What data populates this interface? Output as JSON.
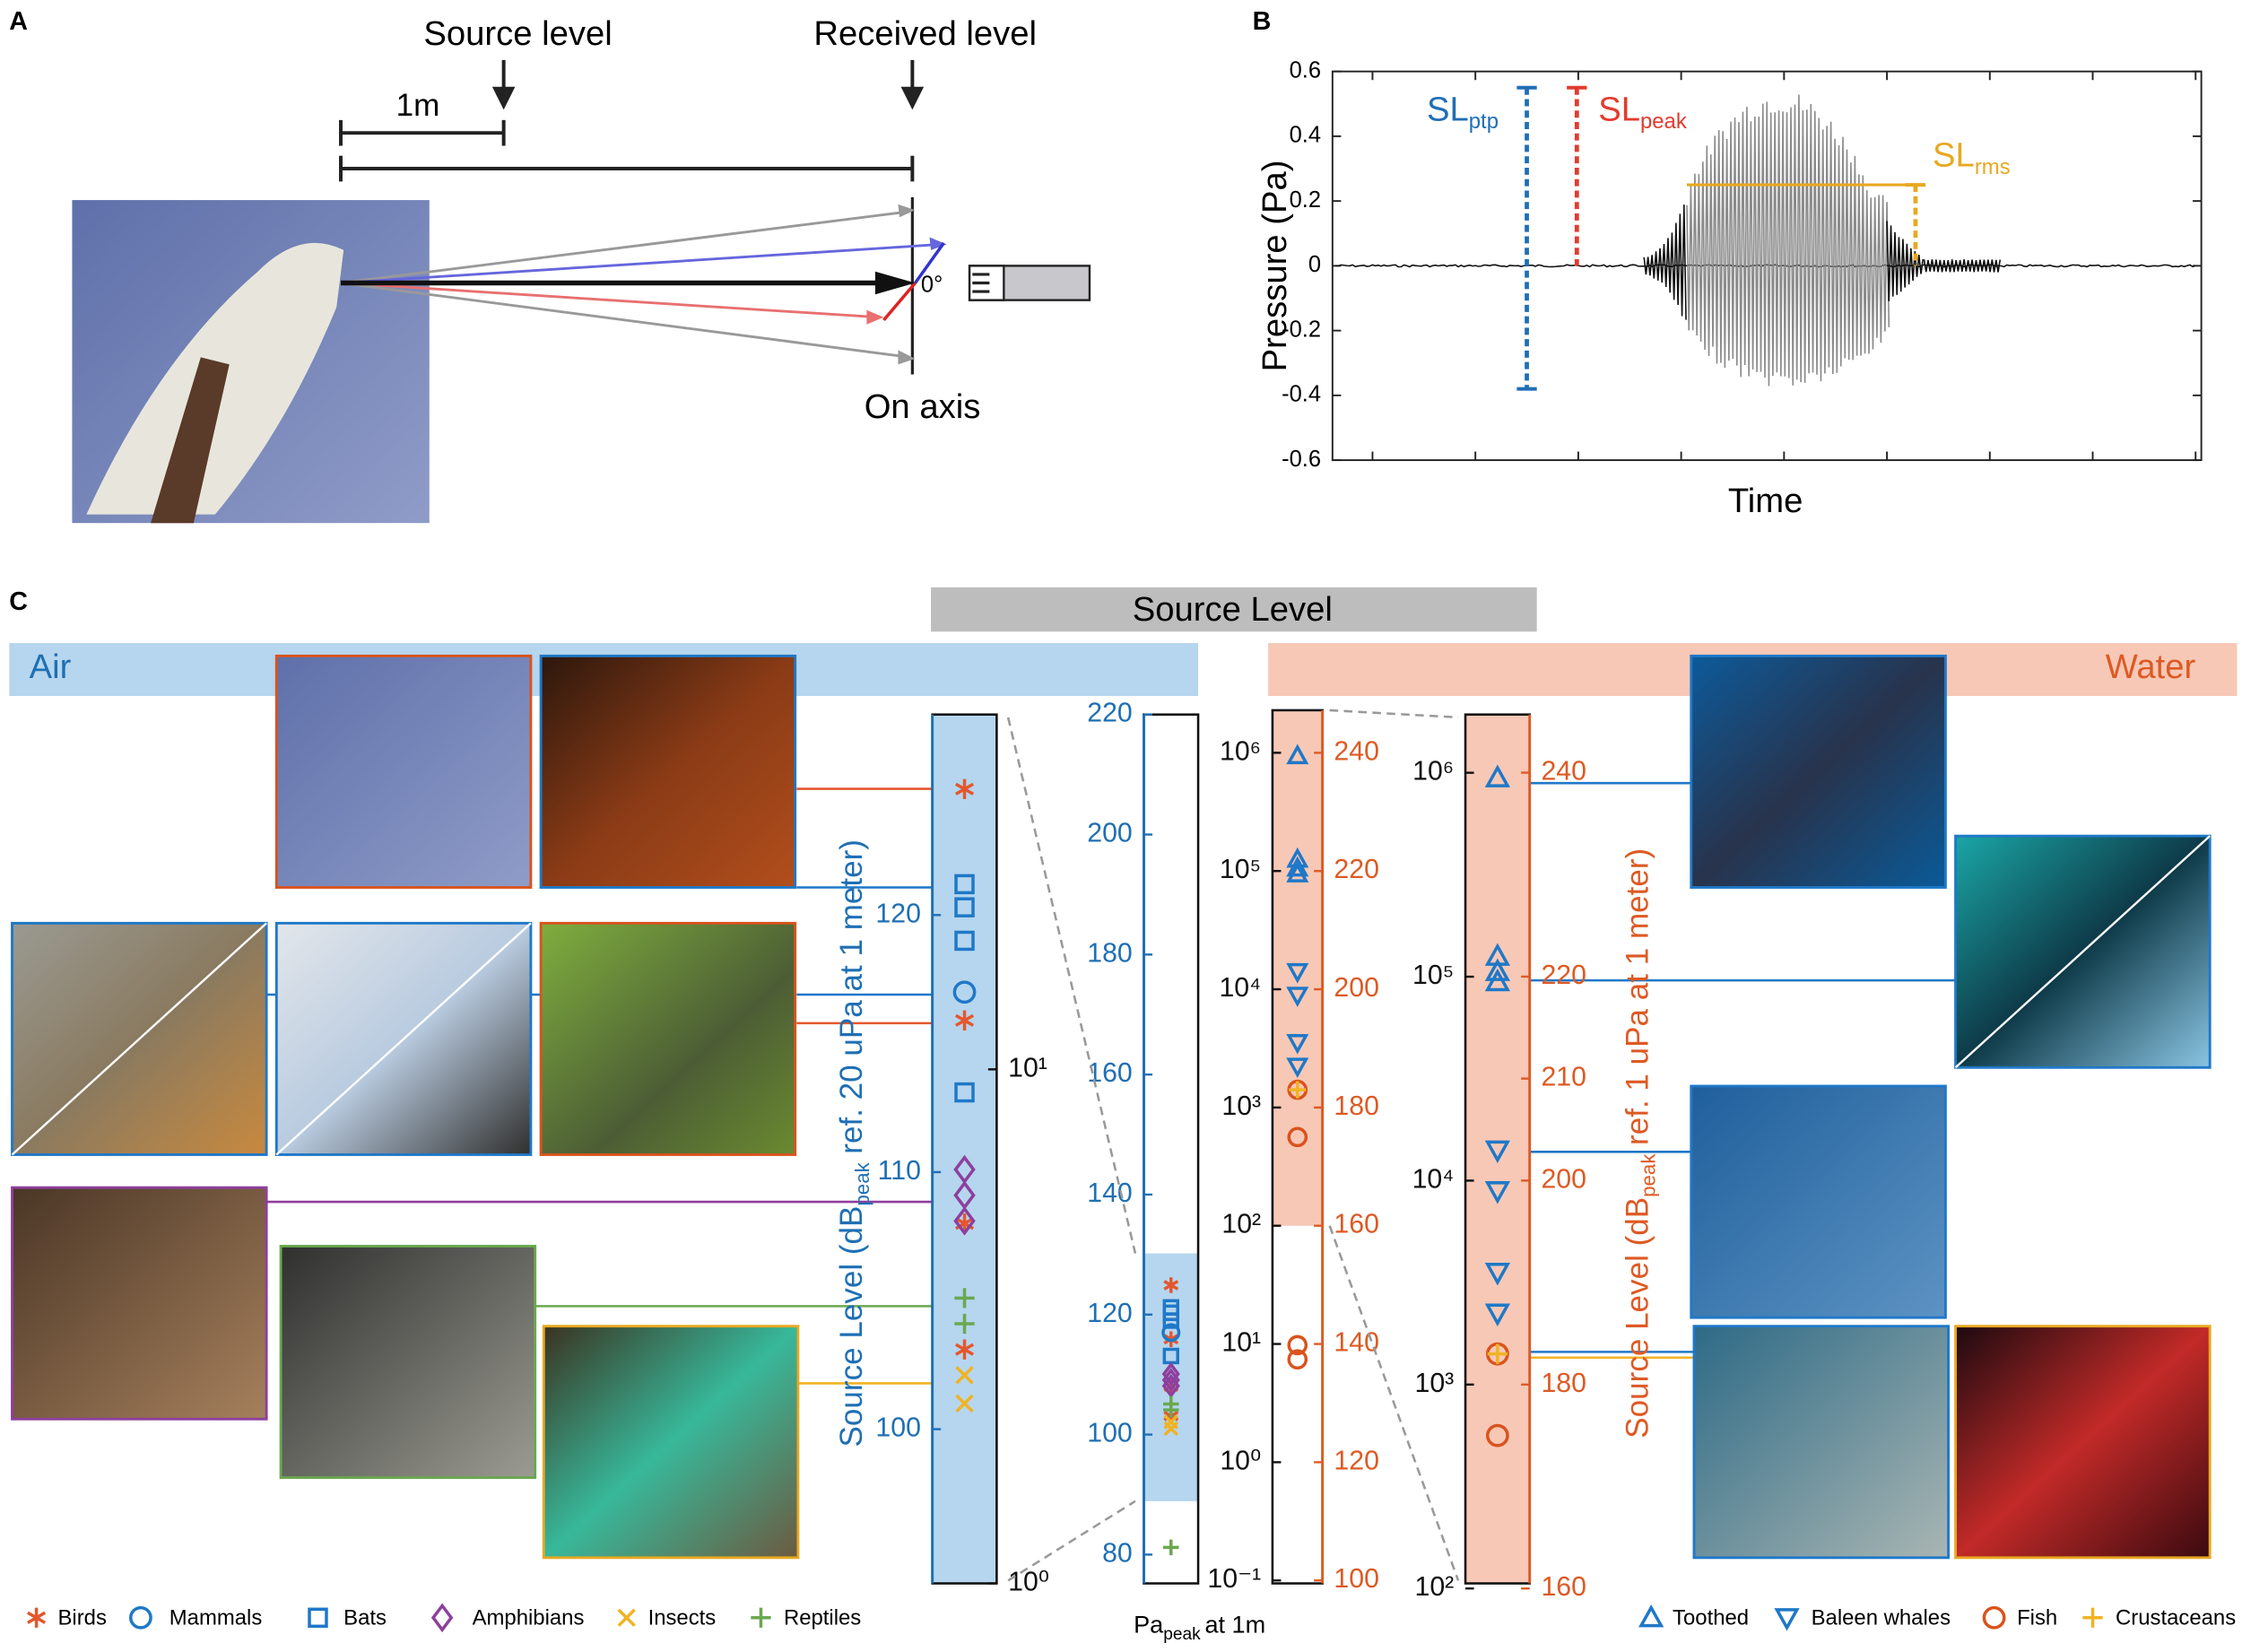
{
  "panel_a": {
    "label": "A",
    "source_level": "Source level",
    "received_level": "Received level",
    "distance": "1m",
    "angle": "0°",
    "on_axis": "On axis"
  },
  "panel_b": {
    "label": "B",
    "y_label": "Pressure (Pa)",
    "x_label": "Time",
    "ylim": [
      -0.6,
      0.6
    ],
    "yticks": [
      0.6,
      0.4,
      0.2,
      0,
      -0.2,
      -0.4,
      -0.6
    ],
    "annotations": [
      {
        "text": "SL",
        "sub": "ptp",
        "color": "#1f6fb4",
        "ymin": -0.38,
        "ymax": 0.55
      },
      {
        "text": "SL",
        "sub": "peak",
        "color": "#e23b2e",
        "ymin": 0,
        "ymax": 0.55
      },
      {
        "text": "SL",
        "sub": "rms",
        "color": "#e8a820",
        "ymin": 0,
        "ymax": 0.25
      }
    ]
  },
  "panel_c": {
    "label": "C",
    "title": "Source Level",
    "air": {
      "label": "Air",
      "color": "#1f6fb4",
      "band_color": "#b5d6ee",
      "y_label": {
        "pre": "Source Level (dB",
        "sub": "peak",
        "post": "ref. 20 uPa at 1 meter)"
      },
      "axes": [
        {
          "ylim": [
            94,
            127.8
          ],
          "yticks": [
            100,
            110,
            120
          ],
          "yside": "left",
          "color": "#1f6fb4",
          "shade": true,
          "y2lim": [
            1,
            49
          ],
          "y2log": true,
          "y2ticks": [
            {
              "value": 1,
              "label": "10⁰"
            },
            {
              "value": 10,
              "label": "10¹"
            }
          ]
        },
        {
          "ylim": [
            75.2,
            220
          ],
          "yticks": [
            80,
            100,
            120,
            140,
            160,
            180,
            200,
            220
          ],
          "yside": "left",
          "color": "#1f6fb4",
          "shade": [
            88.9,
            130.2
          ],
          "x_label": {
            "pre": "Pa",
            "sub": "peak",
            "post": "at 1m"
          }
        }
      ],
      "series": [
        {
          "name": "Birds",
          "marker": "asterisk",
          "color": "#e4572e",
          "values": [
            124.9,
            115.9,
            108.0,
            103.1
          ]
        },
        {
          "name": "Mammals",
          "marker": "circle",
          "color": "#1f78c8",
          "values": [
            117.0
          ]
        },
        {
          "name": "Bats",
          "marker": "square",
          "color": "#1f78c8",
          "values": [
            121.2,
            120.3,
            119.0,
            113.1
          ]
        },
        {
          "name": "Amphibians",
          "marker": "diamond",
          "color": "#8e3f9e",
          "values": [
            110.1,
            109.1,
            108.1
          ]
        },
        {
          "name": "Insects",
          "marker": "x",
          "color": "#f0b323",
          "values": [
            102.1,
            101.0
          ]
        },
        {
          "name": "Reptiles",
          "marker": "plus",
          "color": "#6aa84f",
          "values": [
            105.1,
            104.1,
            81.2
          ]
        }
      ]
    },
    "water": {
      "label": "Water",
      "color": "#dd5a24",
      "band_color": "#f7c8b6",
      "y_label": {
        "pre": "Source Level (dB",
        "sub": "peak",
        "post": "ref. 1 uPa at 1 meter)"
      },
      "axes": [
        {
          "ylim": [
            99.5,
            247.2
          ],
          "yticks": [
            100,
            120,
            140,
            160,
            180,
            200,
            220,
            240
          ],
          "yside": "right",
          "color": "#dd5a24",
          "shade": [
            160,
            247.2
          ],
          "y2lim": [
            0.0944,
            2290000
          ],
          "y2log": true,
          "y2ticks": [
            {
              "value": 0.1,
              "label": "10⁻¹"
            },
            {
              "value": 1,
              "label": "10⁰"
            },
            {
              "value": 10,
              "label": "10¹"
            },
            {
              "value": 100,
              "label": "10²"
            },
            {
              "value": 1000,
              "label": "10³"
            },
            {
              "value": 10000,
              "label": "10⁴"
            },
            {
              "value": 100000,
              "label": "10⁵"
            },
            {
              "value": 1000000,
              "label": "10⁶"
            }
          ]
        },
        {
          "ylim": [
            160.5,
            245.7
          ],
          "yticks": [
            160,
            180,
            200,
            210,
            220,
            240
          ],
          "yside": "right",
          "color": "#dd5a24",
          "shade": true,
          "y2lim": [
            105.9,
            1930000
          ],
          "y2log": true,
          "y2ticks": [
            {
              "value": 100,
              "label": "10²"
            },
            {
              "value": 1000,
              "label": "10³"
            },
            {
              "value": 10000,
              "label": "10⁴"
            },
            {
              "value": 100000,
              "label": "10⁵"
            },
            {
              "value": 1000000,
              "label": "10⁶"
            }
          ]
        }
      ],
      "series": [
        {
          "name": "Toothed",
          "marker": "triangle-up",
          "color": "#1f78c8",
          "values": [
            239.5,
            222,
            220.5,
            219.5
          ]
        },
        {
          "name": "Baleen whales",
          "marker": "triangle-down",
          "color": "#1f78c8",
          "values": [
            203,
            199,
            191,
            187
          ]
        },
        {
          "name": "Fish",
          "marker": "circle",
          "color": "#d9531e",
          "values": [
            183,
            175,
            139.8,
            137.4
          ]
        },
        {
          "name": "Crustaceans",
          "marker": "plus",
          "color": "#f0b323",
          "values": [
            183
          ]
        }
      ]
    }
  }
}
